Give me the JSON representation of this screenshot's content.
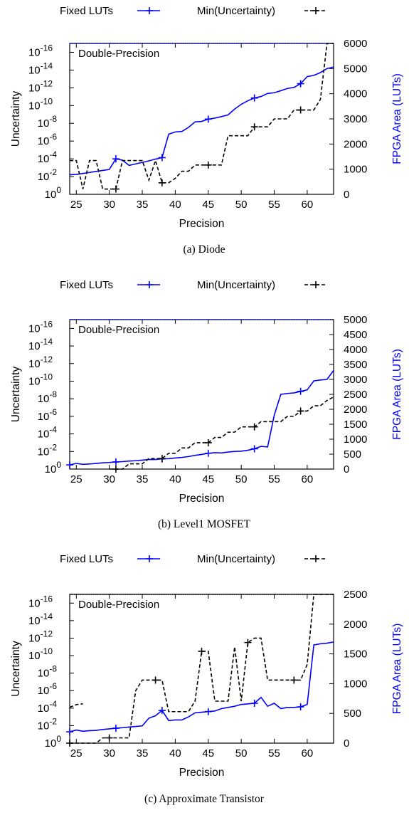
{
  "chart_data": [
    {
      "type": "line",
      "caption": "(a) Diode",
      "xlabel": "Precision",
      "ylabel": "Uncertainty",
      "y2label": "FPGA Area (LUTs)",
      "annotation": "Double-Precision",
      "xlim": [
        24,
        64
      ],
      "x_ticks": [
        25,
        30,
        35,
        40,
        45,
        50,
        55,
        60
      ],
      "ylim_exponent": [
        0,
        -17
      ],
      "y_ticks": [
        "10^0",
        "10^-2",
        "10^-4",
        "10^-6",
        "10^-8",
        "10^-10",
        "10^-12",
        "10^-14",
        "10^-16"
      ],
      "y2lim": [
        0,
        6000
      ],
      "y2_ticks": [
        0,
        1000,
        2000,
        3000,
        4000,
        5000,
        6000
      ],
      "legend": [
        {
          "name": "Fixed LUTs",
          "style": "solid",
          "color": "#0000ff",
          "marker": "+"
        },
        {
          "name": "Min(Uncertainty)",
          "style": "dashed",
          "color": "#000000",
          "marker": "+"
        }
      ],
      "series": [
        {
          "name": "Fixed LUTs",
          "axis": "y2",
          "x": [
            24,
            25,
            26,
            27,
            28,
            29,
            30,
            31,
            32,
            33,
            34,
            35,
            36,
            37,
            38,
            39,
            40,
            41,
            42,
            43,
            44,
            45,
            46,
            47,
            48,
            49,
            50,
            51,
            52,
            53,
            54,
            55,
            56,
            57,
            58,
            59,
            60,
            61,
            62,
            63,
            64
          ],
          "y": [
            780,
            790,
            830,
            870,
            910,
            950,
            990,
            1410,
            1360,
            1150,
            1210,
            1270,
            1330,
            1400,
            1460,
            2390,
            2480,
            2500,
            2660,
            2880,
            2900,
            2990,
            3030,
            3090,
            3160,
            3390,
            3580,
            3720,
            3830,
            3890,
            4010,
            4040,
            4120,
            4210,
            4250,
            4400,
            4680,
            4730,
            4840,
            5000,
            5060
          ],
          "markers_at": [
            31,
            38,
            45,
            52,
            59
          ]
        },
        {
          "name": "Min(Uncertainty)",
          "axis": "y",
          "x": [
            24,
            25,
            26,
            27,
            28,
            29,
            30,
            31,
            32,
            33,
            34,
            35,
            36,
            37,
            38,
            39,
            40,
            41,
            42,
            43,
            44,
            45,
            46,
            47,
            48,
            49,
            50,
            51,
            52,
            53,
            54,
            55,
            56,
            57,
            58,
            59,
            60,
            61,
            62,
            63,
            64
          ],
          "y_exp": [
            -3.8,
            -3.8,
            -0.6,
            -3.8,
            -3.8,
            -0.6,
            -0.6,
            -0.6,
            -3.8,
            -3.8,
            -3.8,
            -3.8,
            -1.6,
            -3.8,
            -1.3,
            -1.3,
            -1.8,
            -2.6,
            -2.6,
            -3.3,
            -3.3,
            -3.3,
            -3.3,
            -3.3,
            -6.6,
            -6.6,
            -6.6,
            -6.6,
            -7.6,
            -7.6,
            -7.6,
            -8.5,
            -8.5,
            -8.5,
            -9.5,
            -9.5,
            -9.5,
            -9.5,
            -10.7,
            -17,
            -17
          ],
          "markers_at": [
            31,
            38,
            45,
            52,
            59
          ]
        }
      ],
      "double_precision_level_exp": -17
    },
    {
      "type": "line",
      "caption": "(b) Level1 MOSFET",
      "xlabel": "Precision",
      "ylabel": "Uncertainty",
      "y2label": "FPGA Area (LUTs)",
      "annotation": "Double-Precision",
      "xlim": [
        24,
        64
      ],
      "x_ticks": [
        25,
        30,
        35,
        40,
        45,
        50,
        55,
        60
      ],
      "ylim_exponent": [
        0,
        -17
      ],
      "y_ticks": [
        "10^0",
        "10^-2",
        "10^-4",
        "10^-6",
        "10^-8",
        "10^-10",
        "10^-12",
        "10^-14",
        "10^-16"
      ],
      "y2lim": [
        0,
        5000
      ],
      "y2_ticks": [
        0,
        500,
        1000,
        1500,
        2000,
        2500,
        3000,
        3500,
        4000,
        4500,
        5000
      ],
      "legend": [
        {
          "name": "Fixed LUTs",
          "style": "solid",
          "color": "#0000ff",
          "marker": "+"
        },
        {
          "name": "Min(Uncertainty)",
          "style": "dashed",
          "color": "#000000",
          "marker": "+"
        }
      ],
      "series": [
        {
          "name": "Fixed LUTs",
          "axis": "y2",
          "x": [
            24,
            25,
            26,
            27,
            28,
            29,
            30,
            31,
            32,
            33,
            34,
            35,
            36,
            37,
            38,
            39,
            40,
            41,
            42,
            43,
            44,
            45,
            46,
            47,
            48,
            49,
            50,
            51,
            52,
            53,
            54,
            55,
            56,
            57,
            58,
            59,
            60,
            61,
            62,
            63,
            64
          ],
          "y": [
            140,
            190,
            160,
            170,
            190,
            210,
            220,
            240,
            250,
            270,
            280,
            300,
            320,
            320,
            340,
            350,
            370,
            390,
            420,
            460,
            490,
            530,
            550,
            540,
            570,
            590,
            600,
            630,
            680,
            760,
            740,
            1800,
            2500,
            2530,
            2550,
            2600,
            2650,
            2950,
            2980,
            3000,
            3300
          ],
          "markers_at": [
            24,
            31,
            38,
            45,
            52,
            59
          ]
        },
        {
          "name": "Min(Uncertainty)",
          "axis": "y",
          "x": [
            30,
            31,
            32,
            33,
            34,
            35,
            36,
            37,
            38,
            39,
            40,
            41,
            42,
            43,
            44,
            45,
            46,
            47,
            48,
            49,
            50,
            51,
            52,
            53,
            54,
            55,
            56,
            57,
            58,
            59,
            60,
            61,
            62,
            63,
            64
          ],
          "y_exp": [
            0,
            0,
            0,
            -0.6,
            -0.6,
            -0.6,
            -1.2,
            -1.2,
            -1.2,
            -1.8,
            -1.8,
            -2.4,
            -2.4,
            -3.0,
            -3.0,
            -3.0,
            -3.6,
            -3.6,
            -4.2,
            -4.2,
            -4.8,
            -4.8,
            -4.8,
            -5.4,
            -5.4,
            -5.4,
            -5.4,
            -6.0,
            -6.0,
            -6.6,
            -6.6,
            -7.2,
            -7.2,
            -7.8,
            -8.2
          ],
          "markers_at": [
            31,
            38,
            45,
            52,
            59
          ]
        }
      ],
      "double_precision_level_exp": -17
    },
    {
      "type": "line",
      "caption": "(c) Approximate Transistor",
      "xlabel": "Precision",
      "ylabel": "Uncertainty",
      "y2label": "FPGA Area (LUTs)",
      "annotation": "Double-Precision",
      "xlim": [
        24,
        64
      ],
      "x_ticks": [
        25,
        30,
        35,
        40,
        45,
        50,
        55,
        60
      ],
      "ylim_exponent": [
        0,
        -17
      ],
      "y_ticks": [
        "10^0",
        "10^-2",
        "10^-4",
        "10^-6",
        "10^-8",
        "10^-10",
        "10^-12",
        "10^-14",
        "10^-16"
      ],
      "y2lim": [
        0,
        2500
      ],
      "y2_ticks": [
        0,
        500,
        1000,
        1500,
        2000,
        2500
      ],
      "legend": [
        {
          "name": "Fixed LUTs",
          "style": "solid",
          "color": "#0000ff",
          "marker": "+"
        },
        {
          "name": "Min(Uncertainty)",
          "style": "dashed",
          "color": "#000000",
          "marker": "+"
        }
      ],
      "series": [
        {
          "name": "Fixed LUTs",
          "axis": "y2",
          "x": [
            24,
            25,
            26,
            27,
            28,
            29,
            30,
            31,
            32,
            33,
            34,
            35,
            36,
            37,
            38,
            39,
            40,
            41,
            42,
            43,
            44,
            45,
            46,
            47,
            48,
            49,
            50,
            51,
            52,
            53,
            54,
            55,
            56,
            57,
            58,
            59,
            60,
            61,
            62,
            63,
            64
          ],
          "y": [
            190,
            220,
            200,
            210,
            215,
            230,
            240,
            250,
            260,
            270,
            280,
            290,
            420,
            460,
            550,
            380,
            390,
            390,
            440,
            510,
            520,
            530,
            540,
            580,
            600,
            620,
            650,
            660,
            670,
            770,
            620,
            670,
            580,
            600,
            600,
            610,
            650,
            1650,
            1670,
            1680,
            1700
          ],
          "markers_at": [
            24,
            31,
            38,
            45,
            52,
            59
          ]
        },
        {
          "name": "Min(Uncertainty)",
          "axis": "y",
          "x": [
            24,
            25,
            26,
            27,
            28,
            29,
            30,
            31,
            32,
            33,
            34,
            35,
            36,
            37,
            38,
            39,
            40,
            41,
            42,
            43,
            44,
            45,
            46,
            47,
            48,
            49,
            50,
            51,
            52,
            53,
            54,
            55,
            56,
            57,
            58,
            59,
            60,
            61,
            62,
            63,
            64
          ],
          "y_exp": [
            0,
            0,
            0,
            0,
            0,
            -0.6,
            -0.6,
            -0.6,
            -0.6,
            -0.6,
            -6.0,
            -7.2,
            -7.2,
            -7.2,
            -7.2,
            -3.6,
            -3.6,
            -3.6,
            -3.6,
            -4.8,
            -10.5,
            -10.5,
            -4.8,
            -4.8,
            -4.8,
            -11.0,
            -4.8,
            -11.5,
            -12.0,
            -12.0,
            -7.2,
            -7.2,
            -7.2,
            -7.2,
            -7.2,
            -7.2,
            -9.0,
            -17,
            -17,
            -17,
            -17
          ],
          "extra_segment": {
            "x": [
              24,
              25,
              26
            ],
            "y_exp": [
              -4.1,
              -4.4,
              -4.5
            ]
          },
          "markers_at": [
            24,
            30,
            37,
            44,
            51,
            58
          ]
        }
      ],
      "double_precision_level_exp": -17
    }
  ]
}
